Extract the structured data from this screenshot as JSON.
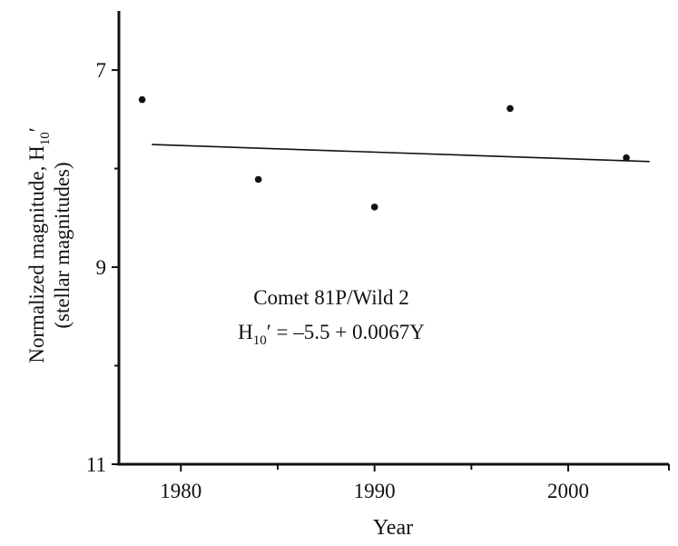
{
  "chart_data": {
    "type": "scatter",
    "title": "",
    "xlabel": "Year",
    "ylabel_lines": [
      "Normalized magnitude, H10′",
      "(stellar magnitudes)"
    ],
    "ylabel_main": "Normalized magnitude, H",
    "ylabel_sub": "10",
    "ylabel_prime": "′",
    "ylabel_line2": "(stellar magnitudes)",
    "xlim": [
      1976.8,
      2005.2
    ],
    "ylim": [
      11,
      6.4
    ],
    "y_inverted": true,
    "grid": false,
    "x_ticks": [
      1980,
      1990,
      2000
    ],
    "x_minor_ticks": [
      1985,
      1995
    ],
    "y_ticks": [
      7,
      9,
      11
    ],
    "y_minor_ticks": [
      8,
      10
    ],
    "points": [
      {
        "x": 1978,
        "y": 7.3
      },
      {
        "x": 1984,
        "y": 8.11
      },
      {
        "x": 1990,
        "y": 8.39
      },
      {
        "x": 1997,
        "y": 7.39
      },
      {
        "x": 2003,
        "y": 7.89
      }
    ],
    "fit": {
      "intercept": -5.5,
      "slope": 0.0067,
      "x_range": [
        1978.5,
        2004.2
      ]
    },
    "annotation": {
      "line1": "Comet 81P/Wild 2",
      "line2_prefix": "H",
      "line2_sub": "10",
      "line2_rest": "′ = –5.5 + 0.0067Y"
    }
  }
}
